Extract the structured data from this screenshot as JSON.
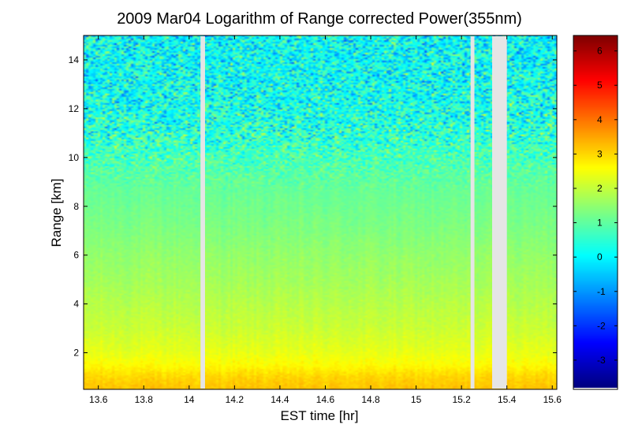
{
  "chart_data": {
    "type": "heatmap",
    "title": "2009 Mar04  Logarithm of Range corrected Power(355nm)",
    "xlabel": "EST time [hr]",
    "ylabel": "Range [km]",
    "xlim": [
      13.535,
      15.62
    ],
    "ylim": [
      0.5,
      15
    ],
    "x_ticks": [
      13.6,
      13.8,
      14,
      14.2,
      14.4,
      14.6,
      14.8,
      15,
      15.2,
      15.4,
      15.6
    ],
    "y_ticks": [
      2,
      4,
      6,
      8,
      10,
      12,
      14
    ],
    "colorbar": {
      "colormap": "jet",
      "clim": [
        -3.85,
        6.45
      ],
      "ticks": [
        -3,
        -2,
        -1,
        0,
        1,
        2,
        3,
        4,
        5,
        6
      ]
    },
    "data_gaps": [
      {
        "x_start": 14.05,
        "x_end": 14.07
      },
      {
        "x_start": 15.24,
        "x_end": 15.257
      },
      {
        "x_start": 15.335,
        "x_end": 15.4
      }
    ],
    "gap_color": "#e5e5e5",
    "profile_km_vs_value": [
      {
        "range_km": 0.5,
        "value": 3.2
      },
      {
        "range_km": 1.0,
        "value": 3.0
      },
      {
        "range_km": 1.5,
        "value": 2.6
      },
      {
        "range_km": 2.0,
        "value": 2.35
      },
      {
        "range_km": 3.0,
        "value": 2.05
      },
      {
        "range_km": 4.0,
        "value": 1.85
      },
      {
        "range_km": 5.0,
        "value": 1.65
      },
      {
        "range_km": 6.0,
        "value": 1.5
      },
      {
        "range_km": 7.0,
        "value": 1.3
      },
      {
        "range_km": 8.0,
        "value": 1.15
      },
      {
        "range_km": 9.0,
        "value": 1.0
      },
      {
        "range_km": 10.0,
        "value": 0.75
      },
      {
        "range_km": 11.0,
        "value": 0.45
      },
      {
        "range_km": 12.0,
        "value": 0.25
      },
      {
        "range_km": 13.0,
        "value": 0.15
      },
      {
        "range_km": 14.0,
        "value": 0.1
      },
      {
        "range_km": 15.0,
        "value": 0.05
      }
    ]
  }
}
